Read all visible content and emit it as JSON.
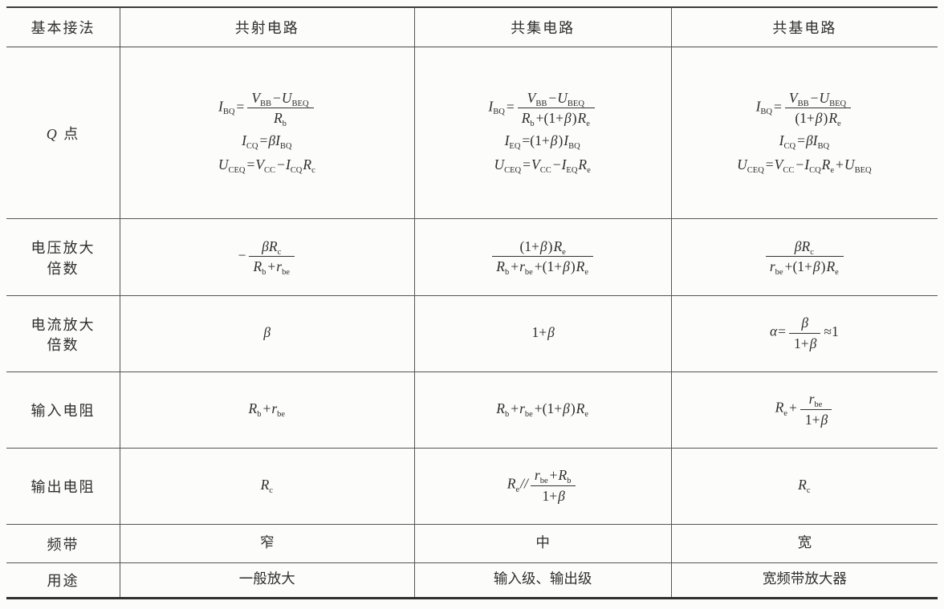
{
  "colors": {
    "page_bg": "#fcfcfa",
    "text": "#2e2e2e",
    "rule_dark": "#303030",
    "rule_light": "#555555"
  },
  "table": {
    "columns": [
      "基本接法",
      "共射电路",
      "共集电路",
      "共基电路"
    ],
    "rows": [
      {
        "label": [
          [
            {
              "v": "Q"
            },
            {
              "t": " 点"
            }
          ]
        ],
        "cells": [
          [
            [
              {
                "v": "I",
                "s": "BQ"
              },
              {
                "t": "=",
                "o": 1
              },
              {
                "f": {
                  "n": [
                    {
                      "v": "V",
                      "s": "BB"
                    },
                    {
                      "t": "−",
                      "o": 1
                    },
                    {
                      "v": "U",
                      "s": "BEQ"
                    }
                  ],
                  "d": [
                    {
                      "v": "R",
                      "s": "b"
                    }
                  ]
                }
              }
            ],
            [
              {
                "v": "I",
                "s": "CQ"
              },
              {
                "t": "=",
                "o": 1
              },
              {
                "v": "β"
              },
              {
                "v": "I",
                "s": "BQ"
              }
            ],
            [
              {
                "v": "U",
                "s": "CEQ"
              },
              {
                "t": "=",
                "o": 1
              },
              {
                "v": "V",
                "s": "CC"
              },
              {
                "t": "−",
                "o": 1
              },
              {
                "v": "I",
                "s": "CQ"
              },
              {
                "v": "R",
                "s": "c"
              }
            ]
          ],
          [
            [
              {
                "v": "I",
                "s": "BQ"
              },
              {
                "t": "=",
                "o": 1
              },
              {
                "f": {
                  "n": [
                    {
                      "v": "V",
                      "s": "BB"
                    },
                    {
                      "t": "−",
                      "o": 1
                    },
                    {
                      "v": "U",
                      "s": "BEQ"
                    }
                  ],
                  "d": [
                    {
                      "v": "R",
                      "s": "b"
                    },
                    {
                      "t": "+(1+",
                      "o": 1
                    },
                    {
                      "v": "β"
                    },
                    {
                      "t": ")",
                      "o": 1
                    },
                    {
                      "v": "R",
                      "s": "e"
                    }
                  ]
                }
              }
            ],
            [
              {
                "v": "I",
                "s": "EQ"
              },
              {
                "t": "=(1+",
                "o": 1
              },
              {
                "v": "β"
              },
              {
                "t": ")",
                "o": 1
              },
              {
                "v": "I",
                "s": "BQ"
              }
            ],
            [
              {
                "v": "U",
                "s": "CEQ"
              },
              {
                "t": "=",
                "o": 1
              },
              {
                "v": "V",
                "s": "CC"
              },
              {
                "t": "−",
                "o": 1
              },
              {
                "v": "I",
                "s": "EQ"
              },
              {
                "v": "R",
                "s": "e"
              }
            ]
          ],
          [
            [
              {
                "v": "I",
                "s": "BQ"
              },
              {
                "t": "=",
                "o": 1
              },
              {
                "f": {
                  "n": [
                    {
                      "v": "V",
                      "s": "BB"
                    },
                    {
                      "t": "−",
                      "o": 1
                    },
                    {
                      "v": "U",
                      "s": "BEQ"
                    }
                  ],
                  "d": [
                    {
                      "t": "(1+",
                      "o": 1
                    },
                    {
                      "v": "β"
                    },
                    {
                      "t": ")",
                      "o": 1
                    },
                    {
                      "v": "R",
                      "s": "e"
                    }
                  ]
                }
              }
            ],
            [
              {
                "v": "I",
                "s": "CQ"
              },
              {
                "t": "=",
                "o": 1
              },
              {
                "v": "β"
              },
              {
                "v": "I",
                "s": "BQ"
              }
            ],
            [
              {
                "v": "U",
                "s": "CEQ"
              },
              {
                "t": "=",
                "o": 1
              },
              {
                "v": "V",
                "s": "CC"
              },
              {
                "t": "−",
                "o": 1
              },
              {
                "v": "I",
                "s": "CQ"
              },
              {
                "v": "R",
                "s": "e"
              },
              {
                "t": "+",
                "o": 1
              },
              {
                "v": "U",
                "s": "BEQ"
              }
            ]
          ]
        ]
      },
      {
        "label": [
          [
            {
              "t": "电压放大"
            }
          ],
          [
            {
              "t": "倍数"
            }
          ]
        ],
        "cells": [
          [
            [
              {
                "t": "−",
                "o": 1
              },
              {
                "f": {
                  "n": [
                    {
                      "v": "β"
                    },
                    {
                      "v": "R",
                      "s": "c"
                    }
                  ],
                  "d": [
                    {
                      "v": "R",
                      "s": "b"
                    },
                    {
                      "t": "+",
                      "o": 1
                    },
                    {
                      "v": "r",
                      "s": "be"
                    }
                  ]
                }
              }
            ]
          ],
          [
            [
              {
                "f": {
                  "n": [
                    {
                      "t": "(1+",
                      "o": 1
                    },
                    {
                      "v": "β"
                    },
                    {
                      "t": ")",
                      "o": 1
                    },
                    {
                      "v": "R",
                      "s": "e"
                    }
                  ],
                  "d": [
                    {
                      "v": "R",
                      "s": "b"
                    },
                    {
                      "t": "+",
                      "o": 1
                    },
                    {
                      "v": "r",
                      "s": "be"
                    },
                    {
                      "t": "+(1+",
                      "o": 1
                    },
                    {
                      "v": "β"
                    },
                    {
                      "t": ")",
                      "o": 1
                    },
                    {
                      "v": "R",
                      "s": "e"
                    }
                  ]
                }
              }
            ]
          ],
          [
            [
              {
                "f": {
                  "n": [
                    {
                      "v": "β"
                    },
                    {
                      "v": "R",
                      "s": "c"
                    }
                  ],
                  "d": [
                    {
                      "v": "r",
                      "s": "be"
                    },
                    {
                      "t": "+(1+",
                      "o": 1
                    },
                    {
                      "v": "β"
                    },
                    {
                      "t": ")",
                      "o": 1
                    },
                    {
                      "v": "R",
                      "s": "e"
                    }
                  ]
                }
              }
            ]
          ]
        ]
      },
      {
        "label": [
          [
            {
              "t": "电流放大"
            }
          ],
          [
            {
              "t": "倍数"
            }
          ]
        ],
        "cells": [
          [
            [
              {
                "v": "β"
              }
            ]
          ],
          [
            [
              {
                "t": "1+",
                "o": 1
              },
              {
                "v": "β"
              }
            ]
          ],
          [
            [
              {
                "v": "α"
              },
              {
                "t": "=",
                "o": 1
              },
              {
                "f": {
                  "n": [
                    {
                      "v": "β"
                    }
                  ],
                  "d": [
                    {
                      "t": "1+",
                      "o": 1
                    },
                    {
                      "v": "β"
                    }
                  ]
                }
              },
              {
                "t": "≈1",
                "o": 1
              }
            ]
          ]
        ]
      },
      {
        "label": [
          [
            {
              "t": "输入电阻"
            }
          ]
        ],
        "cells": [
          [
            [
              {
                "v": "R",
                "s": "b"
              },
              {
                "t": "+",
                "o": 1
              },
              {
                "v": "r",
                "s": "be"
              }
            ]
          ],
          [
            [
              {
                "v": "R",
                "s": "b"
              },
              {
                "t": "+",
                "o": 1
              },
              {
                "v": "r",
                "s": "be"
              },
              {
                "t": "+(1+",
                "o": 1
              },
              {
                "v": "β"
              },
              {
                "t": ")",
                "o": 1
              },
              {
                "v": "R",
                "s": "e"
              }
            ]
          ],
          [
            [
              {
                "v": "R",
                "s": "e"
              },
              {
                "t": "+",
                "o": 1
              },
              {
                "f": {
                  "n": [
                    {
                      "v": "r",
                      "s": "be"
                    }
                  ],
                  "d": [
                    {
                      "t": "1+",
                      "o": 1
                    },
                    {
                      "v": "β"
                    }
                  ]
                }
              }
            ]
          ]
        ]
      },
      {
        "label": [
          [
            {
              "t": "输出电阻"
            }
          ]
        ],
        "cells": [
          [
            [
              {
                "v": "R",
                "s": "c"
              }
            ]
          ],
          [
            [
              {
                "v": "R",
                "s": "e"
              },
              {
                "v": "//"
              },
              {
                "f": {
                  "n": [
                    {
                      "v": "r",
                      "s": "be"
                    },
                    {
                      "t": "+",
                      "o": 1
                    },
                    {
                      "v": "R",
                      "s": "b"
                    }
                  ],
                  "d": [
                    {
                      "t": "1+",
                      "o": 1
                    },
                    {
                      "v": "β"
                    }
                  ]
                }
              }
            ]
          ],
          [
            [
              {
                "v": "R",
                "s": "c"
              }
            ]
          ]
        ]
      },
      {
        "label": [
          [
            {
              "t": "频带"
            }
          ]
        ],
        "cells": [
          [
            [
              {
                "t": "窄"
              }
            ]
          ],
          [
            [
              {
                "t": "中"
              }
            ]
          ],
          [
            [
              {
                "t": "宽"
              }
            ]
          ]
        ]
      },
      {
        "label": [
          [
            {
              "t": "用途"
            }
          ]
        ],
        "cells": [
          [
            [
              {
                "t": "一般放大"
              }
            ]
          ],
          [
            [
              {
                "t": "输入级、输出级"
              }
            ]
          ],
          [
            [
              {
                "t": "宽频带放大器"
              }
            ]
          ]
        ]
      }
    ]
  }
}
